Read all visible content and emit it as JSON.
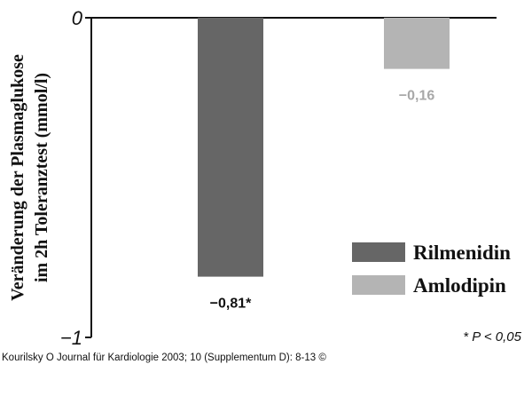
{
  "chart_data": {
    "type": "bar",
    "ylabel_line1": "Veränderung der Plasmaglukose",
    "ylabel_line2": "im 2h Toleranztest  (mmol/l)",
    "ylim": [
      -1,
      0
    ],
    "yticks": [
      {
        "value": 0,
        "label": "0"
      },
      {
        "value": -1,
        "label": "−1"
      }
    ],
    "legend_position": "lower-right",
    "series": [
      {
        "name": "Rilmenidin",
        "value": -0.81,
        "label": "−0,81*",
        "color": "#666666",
        "label_color": "#111111"
      },
      {
        "name": "Amlodipin",
        "value": -0.16,
        "label": "−0,16",
        "color": "#b4b4b4",
        "label_color": "#a8a8a8"
      }
    ],
    "note": "* P < 0,05"
  },
  "citation": "Kourilsky O Journal für Kardiologie 2003; 10 (Supplementum D): 8-13 ©"
}
